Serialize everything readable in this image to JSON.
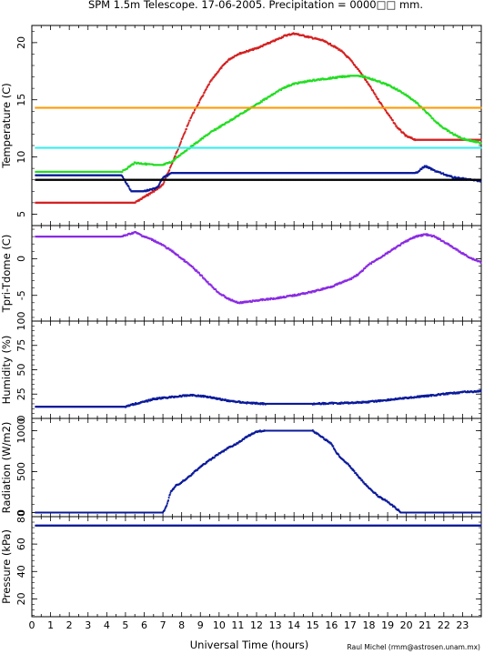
{
  "title": "SPM 1.5m Telescope. 17-06-2005. Precipitation = 0000□□ mm.",
  "xlabel": "Universal Time (hours)",
  "credit": "Raul Michel (rmm@astrosen.unam.mx)",
  "colors": {
    "red": "#d42020",
    "green": "#22dd22",
    "orange": "#ff9900",
    "cyan": "#33eeee",
    "navy": "#0a1a9a",
    "black": "#000000",
    "purple": "#8a2be2"
  },
  "chart_data": [
    {
      "type": "scatter",
      "ylabel": "Temperature (C)",
      "xlim": [
        0,
        24
      ],
      "ylim": [
        4,
        21.5
      ],
      "yticks": [
        5,
        10,
        15,
        20
      ],
      "xticks": [
        0,
        1,
        2,
        3,
        4,
        5,
        6,
        7,
        8,
        9,
        10,
        11,
        12,
        13,
        14,
        15,
        16,
        17,
        18,
        19,
        20,
        21,
        22,
        23
      ],
      "series": [
        {
          "color": "red",
          "points": [
            [
              0.2,
              6.0
            ],
            [
              5.5,
              6.0
            ],
            [
              6.0,
              6.5
            ],
            [
              6.7,
              7.2
            ],
            [
              7.0,
              7.6
            ],
            [
              7.5,
              9.5
            ],
            [
              8.0,
              11.5
            ],
            [
              8.5,
              13.5
            ],
            [
              9.0,
              15.0
            ],
            [
              9.5,
              16.5
            ],
            [
              10.0,
              17.6
            ],
            [
              10.5,
              18.5
            ],
            [
              11.0,
              19.0
            ],
            [
              12.0,
              19.5
            ],
            [
              13.0,
              20.2
            ],
            [
              13.5,
              20.6
            ],
            [
              14.0,
              20.8
            ],
            [
              14.5,
              20.6
            ],
            [
              15.0,
              20.4
            ],
            [
              15.5,
              20.2
            ],
            [
              16.0,
              19.8
            ],
            [
              16.5,
              19.3
            ],
            [
              17.0,
              18.5
            ],
            [
              17.5,
              17.5
            ],
            [
              18.0,
              16.3
            ],
            [
              18.5,
              15.0
            ],
            [
              19.0,
              13.8
            ],
            [
              19.5,
              12.6
            ],
            [
              20.0,
              11.8
            ],
            [
              20.5,
              11.5
            ],
            [
              24.0,
              11.5
            ]
          ]
        },
        {
          "color": "green",
          "points": [
            [
              0.2,
              8.7
            ],
            [
              4.8,
              8.7
            ],
            [
              5.5,
              9.5
            ],
            [
              6.5,
              9.3
            ],
            [
              7.0,
              9.3
            ],
            [
              7.5,
              9.6
            ],
            [
              8.0,
              10.3
            ],
            [
              8.5,
              10.9
            ],
            [
              9.0,
              11.5
            ],
            [
              9.5,
              12.1
            ],
            [
              10.0,
              12.6
            ],
            [
              10.5,
              13.1
            ],
            [
              11.0,
              13.6
            ],
            [
              11.5,
              14.1
            ],
            [
              12.0,
              14.6
            ],
            [
              12.5,
              15.1
            ],
            [
              13.0,
              15.6
            ],
            [
              13.5,
              16.1
            ],
            [
              14.0,
              16.4
            ],
            [
              15.0,
              16.7
            ],
            [
              16.0,
              16.9
            ],
            [
              17.0,
              17.1
            ],
            [
              17.5,
              17.1
            ],
            [
              18.0,
              16.9
            ],
            [
              18.5,
              16.6
            ],
            [
              19.0,
              16.3
            ],
            [
              19.5,
              15.9
            ],
            [
              20.0,
              15.4
            ],
            [
              20.5,
              14.8
            ],
            [
              21.0,
              14.0
            ],
            [
              21.5,
              13.2
            ],
            [
              22.0,
              12.5
            ],
            [
              22.5,
              12.0
            ],
            [
              23.0,
              11.6
            ],
            [
              24.0,
              11.2
            ]
          ]
        },
        {
          "color": "orange",
          "points": [
            [
              0.2,
              14.3
            ],
            [
              24.0,
              14.3
            ]
          ]
        },
        {
          "color": "cyan",
          "points": [
            [
              0.2,
              10.8
            ],
            [
              24.0,
              10.8
            ]
          ]
        },
        {
          "color": "navy",
          "points": [
            [
              0.2,
              8.4
            ],
            [
              4.8,
              8.4
            ],
            [
              5.3,
              7.0
            ],
            [
              6.0,
              7.0
            ],
            [
              6.7,
              7.3
            ],
            [
              7.0,
              8.2
            ],
            [
              7.5,
              8.6
            ],
            [
              20.5,
              8.6
            ],
            [
              21.0,
              9.2
            ],
            [
              21.5,
              8.8
            ],
            [
              22.0,
              8.5
            ],
            [
              22.5,
              8.2
            ],
            [
              23.0,
              8.1
            ],
            [
              24.0,
              7.9
            ]
          ]
        },
        {
          "color": "black",
          "points": [
            [
              0.2,
              8.0
            ],
            [
              24.0,
              8.0
            ]
          ]
        }
      ]
    },
    {
      "type": "scatter",
      "ylabel": "Tpri-Tdome (C)",
      "xlim": [
        0,
        24
      ],
      "ylim": [
        -8.5,
        4.5
      ],
      "yticks": [
        -5,
        0
      ],
      "series": [
        {
          "color": "purple",
          "points": [
            [
              0.2,
              3.0
            ],
            [
              4.8,
              3.0
            ],
            [
              5.5,
              3.6
            ],
            [
              6.0,
              3.0
            ],
            [
              6.5,
              2.5
            ],
            [
              7.0,
              1.8
            ],
            [
              7.5,
              1.0
            ],
            [
              8.0,
              0.0
            ],
            [
              8.5,
              -1.0
            ],
            [
              9.0,
              -2.2
            ],
            [
              9.5,
              -3.5
            ],
            [
              10.0,
              -4.7
            ],
            [
              10.5,
              -5.5
            ],
            [
              11.0,
              -6.0
            ],
            [
              11.5,
              -5.9
            ],
            [
              12.0,
              -5.7
            ],
            [
              13.0,
              -5.4
            ],
            [
              14.0,
              -5.0
            ],
            [
              15.0,
              -4.5
            ],
            [
              16.0,
              -3.8
            ],
            [
              17.0,
              -2.8
            ],
            [
              17.5,
              -2.0
            ],
            [
              18.0,
              -0.8
            ],
            [
              18.5,
              0.0
            ],
            [
              19.0,
              0.8
            ],
            [
              19.5,
              1.6
            ],
            [
              20.0,
              2.4
            ],
            [
              20.5,
              3.0
            ],
            [
              21.0,
              3.3
            ],
            [
              21.5,
              3.0
            ],
            [
              22.0,
              2.3
            ],
            [
              22.5,
              1.5
            ],
            [
              23.0,
              0.7
            ],
            [
              23.5,
              0.0
            ],
            [
              24.0,
              -0.5
            ]
          ]
        }
      ]
    },
    {
      "type": "scatter",
      "ylabel": "Humidity (%)",
      "xlim": [
        0,
        24
      ],
      "ylim": [
        0,
        100
      ],
      "yticks": [
        0,
        25,
        50,
        75,
        100
      ],
      "series": [
        {
          "color": "navy",
          "points": [
            [
              0.2,
              12.0
            ],
            [
              5.0,
              12.0
            ],
            [
              5.5,
              15.0
            ],
            [
              6.0,
              17.0
            ],
            [
              6.5,
              20.0
            ],
            [
              7.5,
              22.0
            ],
            [
              8.5,
              24.0
            ],
            [
              9.5,
              22.0
            ],
            [
              10.5,
              18.0
            ],
            [
              11.5,
              16.0
            ],
            [
              12.5,
              15.0
            ],
            [
              14.0,
              15.0
            ],
            [
              15.0,
              15.0
            ],
            [
              16.0,
              15.5
            ],
            [
              17.0,
              16.0
            ],
            [
              18.0,
              17.0
            ],
            [
              19.0,
              19.0
            ],
            [
              20.0,
              21.0
            ],
            [
              21.0,
              23.0
            ],
            [
              22.0,
              25.0
            ],
            [
              23.0,
              27.0
            ],
            [
              24.0,
              28.0
            ]
          ]
        }
      ]
    },
    {
      "type": "scatter",
      "ylabel": "Radiation (W/m2)",
      "xlim": [
        0,
        24
      ],
      "ylim": [
        -50,
        1150
      ],
      "yticks": [
        0,
        500,
        1000
      ],
      "series": [
        {
          "color": "navy",
          "points": [
            [
              0.2,
              0
            ],
            [
              7.0,
              0
            ],
            [
              7.2,
              80
            ],
            [
              7.4,
              250
            ],
            [
              7.7,
              330
            ],
            [
              8.0,
              370
            ],
            [
              8.5,
              460
            ],
            [
              9.0,
              560
            ],
            [
              9.5,
              640
            ],
            [
              10.0,
              720
            ],
            [
              10.5,
              790
            ],
            [
              11.0,
              850
            ],
            [
              11.5,
              930
            ],
            [
              12.0,
              990
            ],
            [
              12.5,
              1000
            ],
            [
              15.0,
              1000
            ],
            [
              15.5,
              920
            ],
            [
              16.0,
              840
            ],
            [
              16.3,
              720
            ],
            [
              16.6,
              650
            ],
            [
              17.0,
              560
            ],
            [
              17.5,
              420
            ],
            [
              18.0,
              300
            ],
            [
              18.5,
              200
            ],
            [
              19.0,
              130
            ],
            [
              19.5,
              40
            ],
            [
              19.7,
              0
            ],
            [
              24.0,
              0
            ]
          ]
        }
      ]
    },
    {
      "type": "scatter",
      "ylabel": "Pressure (kPa)",
      "xlim": [
        0,
        24
      ],
      "ylim": [
        7,
        80
      ],
      "yticks": [
        20,
        40,
        60,
        80
      ],
      "series": [
        {
          "color": "navy",
          "points": [
            [
              0.2,
              73.5
            ],
            [
              24.0,
              73.5
            ]
          ]
        }
      ]
    }
  ]
}
